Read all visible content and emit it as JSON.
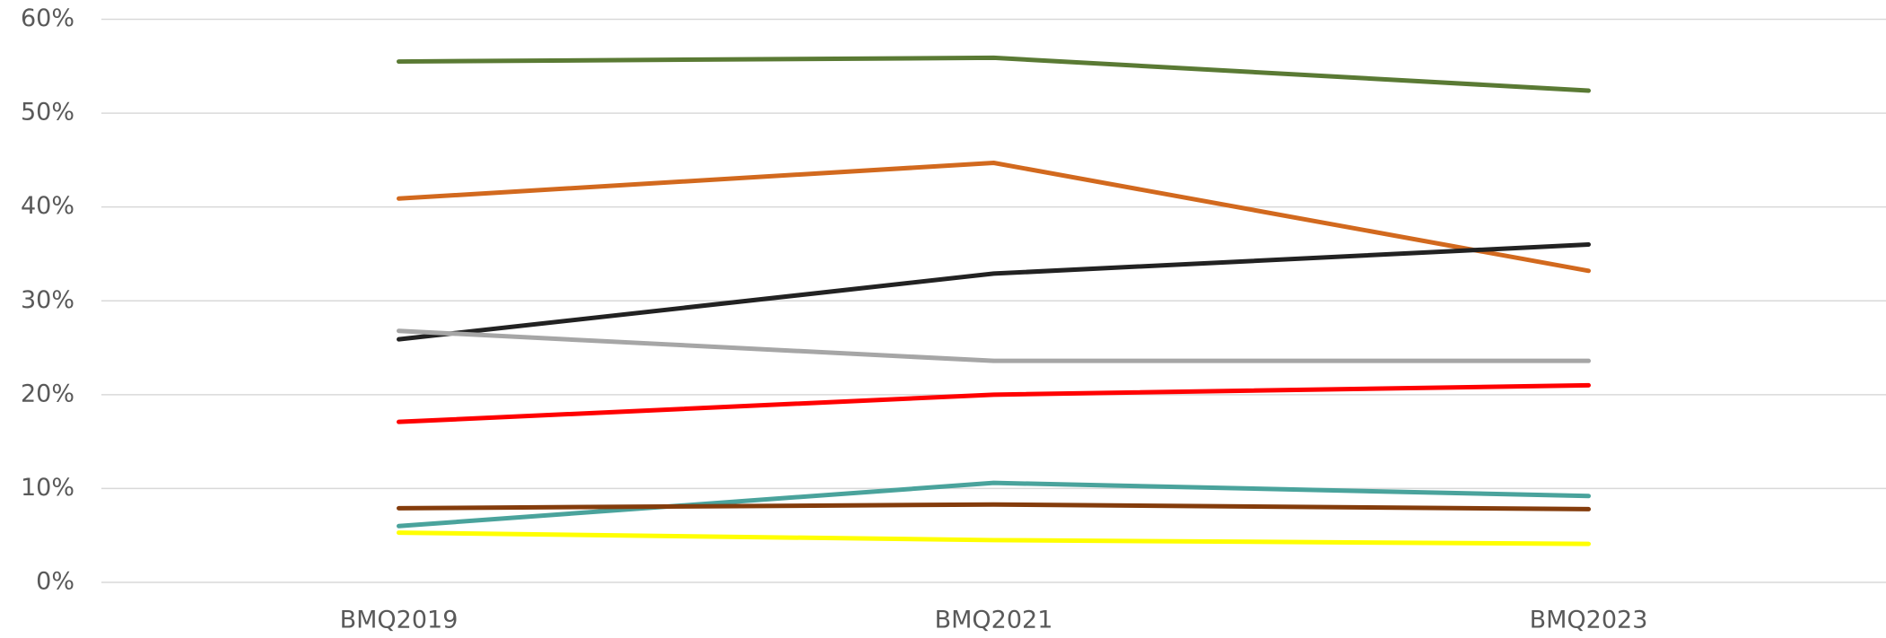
{
  "chart_data": {
    "type": "line",
    "categories": [
      "BMQ2019",
      "BMQ2021",
      "BMQ2023"
    ],
    "series": [
      {
        "color": "#5a7a34",
        "values": [
          55.5,
          55.9,
          52.4
        ]
      },
      {
        "color": "#d2691e",
        "values": [
          40.9,
          44.7,
          33.2
        ]
      },
      {
        "color": "#222222",
        "values": [
          25.9,
          32.9,
          36.0
        ]
      },
      {
        "color": "#a6a6a6",
        "values": [
          26.8,
          23.6,
          23.6
        ]
      },
      {
        "color": "#ff0000",
        "values": [
          17.1,
          20.0,
          21.0
        ]
      },
      {
        "color": "#4aa39c",
        "values": [
          6.0,
          10.6,
          9.2
        ]
      },
      {
        "color": "#843c0c",
        "values": [
          7.9,
          8.3,
          7.8
        ]
      },
      {
        "color": "#ffff00",
        "values": [
          5.3,
          4.5,
          4.1
        ]
      }
    ],
    "ylim": [
      0,
      60
    ],
    "yticks": [
      {
        "value": 0,
        "label": "0%"
      },
      {
        "value": 10,
        "label": "10%"
      },
      {
        "value": 20,
        "label": "20%"
      },
      {
        "value": 30,
        "label": "30%"
      },
      {
        "value": 40,
        "label": "40%"
      },
      {
        "value": 50,
        "label": "50%"
      },
      {
        "value": 60,
        "label": "60%"
      }
    ],
    "grid": true
  }
}
